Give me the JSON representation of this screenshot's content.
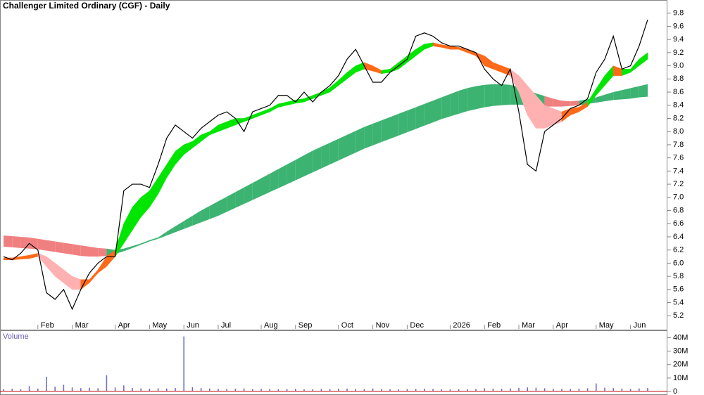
{
  "chart_data": [
    {
      "type": "line",
      "title": "Challenger Limited Ordinary (CGF) - Daily",
      "categories": [
        null,
        null,
        null,
        null,
        "Feb",
        null,
        null,
        null,
        "Mar",
        null,
        null,
        null,
        null,
        "Apr",
        null,
        null,
        null,
        "May",
        null,
        null,
        null,
        "Jun",
        null,
        null,
        null,
        "Jul",
        null,
        null,
        null,
        null,
        "Aug",
        null,
        null,
        null,
        "Sep",
        null,
        null,
        null,
        null,
        "Oct",
        null,
        null,
        null,
        "Nov",
        null,
        null,
        null,
        "Dec",
        null,
        null,
        null,
        null,
        "2026",
        null,
        null,
        null,
        "Feb",
        null,
        null,
        null,
        "Mar",
        null,
        null,
        null,
        "Apr",
        null,
        null,
        null,
        null,
        "May",
        null,
        null,
        null,
        "Jun",
        null,
        null
      ],
      "series": [
        {
          "color": "#000000",
          "values": [
            6.1,
            6.05,
            6.15,
            6.3,
            6.2,
            5.55,
            5.45,
            5.6,
            5.3,
            5.6,
            5.85,
            6.0,
            6.1,
            6.1,
            7.1,
            7.2,
            7.2,
            7.15,
            7.5,
            7.9,
            8.1,
            8.0,
            7.9,
            8.05,
            8.15,
            8.25,
            8.3,
            8.2,
            8.0,
            8.3,
            8.35,
            8.4,
            8.55,
            8.55,
            8.45,
            8.6,
            8.45,
            8.6,
            8.7,
            8.85,
            9.1,
            9.25,
            9.0,
            8.75,
            8.75,
            8.9,
            9.0,
            9.1,
            9.45,
            9.5,
            9.45,
            9.35,
            9.3,
            9.3,
            9.25,
            9.2,
            8.95,
            8.8,
            8.7,
            8.95,
            8.3,
            7.5,
            7.4,
            8.0,
            8.1,
            8.2,
            8.35,
            8.4,
            8.5,
            8.9,
            9.1,
            9.45,
            8.95,
            9.0,
            9.3,
            9.7
          ]
        }
      ],
      "short_band": {
        "lower": [
          6.05,
          6.05,
          6.06,
          6.07,
          6.1,
          5.95,
          5.8,
          5.7,
          5.6,
          5.6,
          5.7,
          5.85,
          5.95,
          6.1,
          6.3,
          6.5,
          6.7,
          6.85,
          7.05,
          7.3,
          7.5,
          7.65,
          7.75,
          7.85,
          7.95,
          8.0,
          8.05,
          8.1,
          8.15,
          8.2,
          8.25,
          8.3,
          8.37,
          8.4,
          8.43,
          8.45,
          8.5,
          8.55,
          8.6,
          8.7,
          8.8,
          8.9,
          8.95,
          8.92,
          8.88,
          8.9,
          8.95,
          9.05,
          9.15,
          9.25,
          9.3,
          9.28,
          9.25,
          9.25,
          9.2,
          9.15,
          9.0,
          8.95,
          8.9,
          8.85,
          8.6,
          8.25,
          8.05,
          8.05,
          8.1,
          8.15,
          8.25,
          8.3,
          8.38,
          8.55,
          8.7,
          8.85,
          8.85,
          8.9,
          9.0,
          9.1
        ],
        "upper": [
          6.08,
          6.08,
          6.1,
          6.12,
          6.15,
          6.1,
          6.0,
          5.9,
          5.8,
          5.75,
          5.75,
          5.9,
          6.1,
          6.2,
          6.6,
          6.85,
          7.0,
          7.1,
          7.3,
          7.5,
          7.7,
          7.8,
          7.85,
          7.95,
          8.0,
          8.1,
          8.15,
          8.2,
          8.2,
          8.25,
          8.3,
          8.35,
          8.42,
          8.45,
          8.48,
          8.5,
          8.55,
          8.6,
          8.67,
          8.78,
          8.9,
          9.0,
          9.05,
          9.0,
          8.93,
          8.95,
          9.05,
          9.15,
          9.25,
          9.33,
          9.35,
          9.32,
          9.3,
          9.28,
          9.25,
          9.2,
          9.15,
          9.05,
          9.0,
          8.95,
          8.85,
          8.7,
          8.55,
          8.4,
          8.35,
          8.3,
          8.35,
          8.37,
          8.45,
          8.65,
          8.85,
          9.0,
          8.95,
          8.95,
          9.1,
          9.2
        ],
        "colors": {
          "rising_above": "#00e600",
          "falling_above": "#ff6a1a",
          "rising_below": "#ff6a1a",
          "falling_below": "#ffb0b0"
        }
      },
      "long_band": {
        "lower": [
          6.25,
          6.24,
          6.23,
          6.22,
          6.21,
          6.19,
          6.17,
          6.15,
          6.13,
          6.11,
          6.1,
          6.1,
          6.11,
          6.14,
          6.18,
          6.23,
          6.28,
          6.33,
          6.37,
          6.42,
          6.47,
          6.52,
          6.57,
          6.62,
          6.67,
          6.72,
          6.78,
          6.84,
          6.9,
          6.96,
          7.02,
          7.08,
          7.14,
          7.2,
          7.26,
          7.32,
          7.38,
          7.44,
          7.5,
          7.56,
          7.62,
          7.68,
          7.74,
          7.79,
          7.84,
          7.89,
          7.94,
          7.99,
          8.04,
          8.09,
          8.14,
          8.19,
          8.23,
          8.27,
          8.31,
          8.34,
          8.37,
          8.39,
          8.4,
          8.41,
          8.41,
          8.4,
          8.39,
          8.38,
          8.38,
          8.38,
          8.39,
          8.4,
          8.42,
          8.44,
          8.46,
          8.48,
          8.49,
          8.5,
          8.52,
          8.53
        ],
        "upper": [
          6.42,
          6.41,
          6.4,
          6.39,
          6.37,
          6.35,
          6.33,
          6.31,
          6.29,
          6.27,
          6.25,
          6.23,
          6.22,
          6.2,
          6.22,
          6.26,
          6.3,
          6.35,
          6.39,
          6.48,
          6.56,
          6.64,
          6.72,
          6.8,
          6.87,
          6.94,
          7.01,
          7.08,
          7.15,
          7.22,
          7.29,
          7.36,
          7.43,
          7.5,
          7.57,
          7.64,
          7.71,
          7.77,
          7.83,
          7.89,
          7.95,
          8.01,
          8.07,
          8.12,
          8.17,
          8.22,
          8.27,
          8.32,
          8.37,
          8.42,
          8.47,
          8.52,
          8.57,
          8.62,
          8.66,
          8.69,
          8.71,
          8.72,
          8.72,
          8.71,
          8.68,
          8.63,
          8.58,
          8.54,
          8.5,
          8.47,
          8.46,
          8.47,
          8.49,
          8.52,
          8.56,
          8.6,
          8.63,
          8.66,
          8.69,
          8.72
        ],
        "colors": {
          "above": "#3cb371",
          "below": "#f08080"
        }
      },
      "ylim": [
        5.0,
        10.0
      ],
      "yticks": [
        5.2,
        5.4,
        5.6,
        5.8,
        {
          "value": 6,
          "label": "6.0"
        },
        6.2,
        6.4,
        6.6,
        6.8,
        {
          "value": 7,
          "label": "7.0"
        },
        7.2,
        7.4,
        7.6,
        7.8,
        {
          "value": 8,
          "label": "8.0"
        },
        8.2,
        8.4,
        8.6,
        8.8,
        {
          "value": 9,
          "label": "9.0"
        },
        9.2,
        9.4,
        9.6,
        9.8
      ],
      "grid": false
    },
    {
      "type": "bar",
      "title": "Volume",
      "color": "#7070c8",
      "values": [
        1800000,
        2000000,
        1600000,
        4000000,
        2200000,
        11000000,
        3500000,
        5000000,
        3000000,
        2500000,
        2800000,
        2400000,
        12000000,
        3000000,
        4500000,
        2600000,
        2300000,
        2100000,
        2400000,
        2200000,
        2600000,
        41000000,
        3200000,
        2500000,
        2200000,
        2000000,
        1900000,
        2100000,
        2300000,
        1800000,
        2000000,
        1900000,
        1700000,
        1800000,
        2000000,
        1600000,
        1700000,
        1900000,
        1800000,
        2100000,
        2200000,
        2000000,
        1800000,
        2300000,
        1900000,
        1700000,
        1600000,
        1800000,
        2000000,
        2100000,
        1900000,
        1700000,
        1500000,
        1600000,
        1800000,
        1900000,
        2400000,
        2200000,
        2000000,
        2300000,
        2600000,
        3000000,
        2800000,
        2400000,
        2100000,
        2000000,
        1900000,
        2200000,
        2400000,
        6000000,
        2800000,
        2500000,
        2200000,
        2000000,
        2300000,
        2600000
      ],
      "ylim": [
        0,
        45000000
      ],
      "yticks": [
        0,
        {
          "value": 10000000,
          "label": "10M"
        },
        {
          "value": 20000000,
          "label": "20M"
        },
        {
          "value": 30000000,
          "label": "30M"
        },
        {
          "value": 40000000,
          "label": "40M"
        }
      ]
    }
  ]
}
